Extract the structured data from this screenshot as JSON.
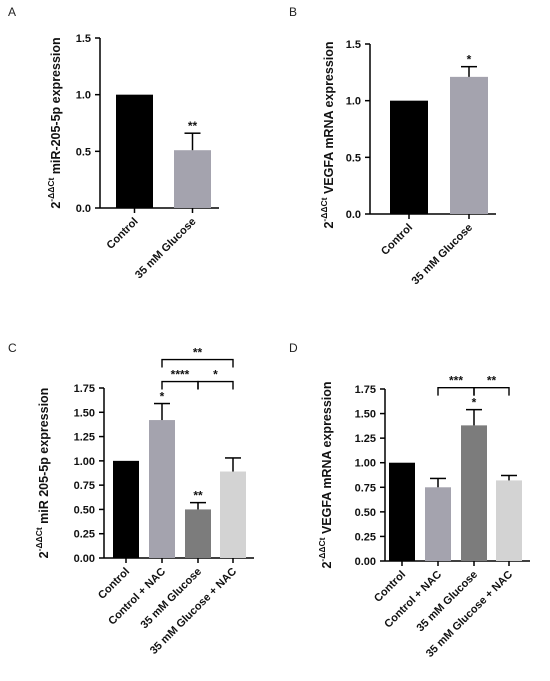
{
  "chart_data": [
    {
      "panel": "A",
      "type": "bar",
      "ylabel_prefix": "2",
      "ylabel_sup": "-ΔΔCt",
      "ylabel_main": " miR-205-5p expression",
      "categories": [
        "Control",
        "35 mM Glucose"
      ],
      "values": [
        1.0,
        0.51
      ],
      "errors": [
        0,
        0.15
      ],
      "colors": [
        "#000000",
        "#a4a3ae"
      ],
      "annotations": [
        "",
        "**"
      ],
      "ylim": [
        0,
        1.5
      ],
      "yticks": [
        "0.0",
        "0.5",
        "1.0",
        "1.5"
      ],
      "brackets": []
    },
    {
      "panel": "B",
      "type": "bar",
      "ylabel_prefix": "2",
      "ylabel_sup": "-ΔΔCt",
      "ylabel_main": " VEGFA mRNA expression",
      "categories": [
        "Control",
        "35 mM Glucose"
      ],
      "values": [
        1.0,
        1.21
      ],
      "errors": [
        0,
        0.09
      ],
      "colors": [
        "#000000",
        "#a4a3ae"
      ],
      "annotations": [
        "",
        "*"
      ],
      "ylim": [
        0,
        1.5
      ],
      "yticks": [
        "0.0",
        "0.5",
        "1.0",
        "1.5"
      ],
      "brackets": []
    },
    {
      "panel": "C",
      "type": "bar",
      "ylabel_prefix": "2",
      "ylabel_sup": "-ΔΔCt",
      "ylabel_main": " miR 205-5p expression",
      "categories": [
        "Control",
        "Control + NAC",
        "35 mM Glucose",
        "35 mM Glucose + NAC"
      ],
      "values": [
        1.0,
        1.42,
        0.5,
        0.89
      ],
      "errors": [
        0,
        0.17,
        0.07,
        0.14
      ],
      "colors": [
        "#000000",
        "#a4a3ae",
        "#7c7c7c",
        "#d3d3d3"
      ],
      "annotations": [
        "",
        "*",
        "**",
        ""
      ],
      "ylim": [
        0,
        1.75
      ],
      "yticks": [
        "0.00",
        "0.25",
        "0.50",
        "0.75",
        "1.00",
        "1.25",
        "1.50",
        "1.75"
      ],
      "brackets": [
        {
          "from": 1,
          "to": 3,
          "label": "**",
          "level": 2
        },
        {
          "from": 1,
          "to": 2,
          "label": "****",
          "level": 1
        },
        {
          "from": 2,
          "to": 3,
          "label": "*",
          "level": 1
        }
      ]
    },
    {
      "panel": "D",
      "type": "bar",
      "ylabel_prefix": "2",
      "ylabel_sup": "-ΔΔCt",
      "ylabel_main": " VEGFA mRNA expression",
      "categories": [
        "Control",
        "Control + NAC",
        "35 mM Glucose",
        "35 mM Glucose + NAC"
      ],
      "values": [
        1.0,
        0.75,
        1.38,
        0.82
      ],
      "errors": [
        0,
        0.09,
        0.16,
        0.05
      ],
      "colors": [
        "#000000",
        "#a4a3ae",
        "#7c7c7c",
        "#d3d3d3"
      ],
      "annotations": [
        "",
        "",
        "*",
        ""
      ],
      "ylim": [
        0,
        1.75
      ],
      "yticks": [
        "0.00",
        "0.25",
        "0.50",
        "0.75",
        "1.00",
        "1.25",
        "1.50",
        "1.75"
      ],
      "brackets": [
        {
          "from": 1,
          "to": 2,
          "label": "***",
          "level": 1
        },
        {
          "from": 2,
          "to": 3,
          "label": "**",
          "level": 1
        }
      ]
    }
  ]
}
